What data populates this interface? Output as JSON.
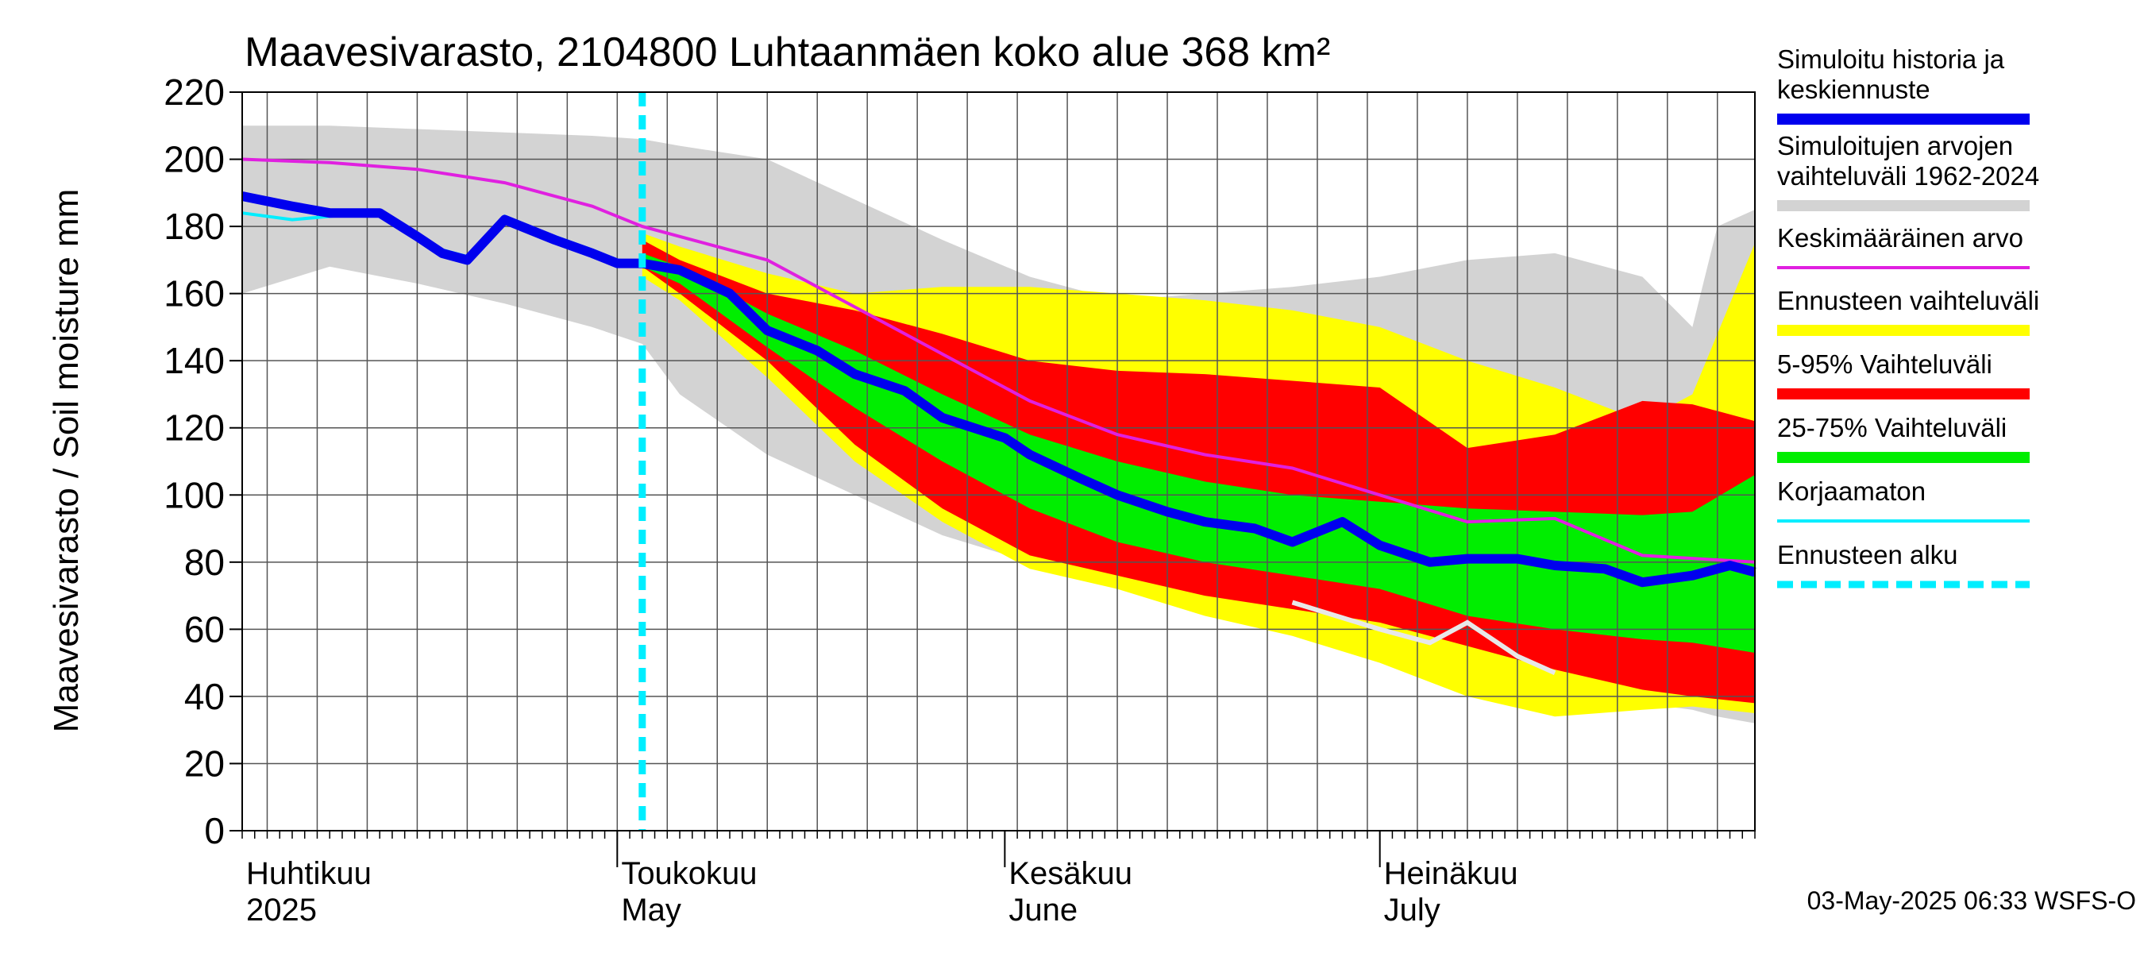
{
  "chart_data": {
    "type": "area",
    "title": "Maavesivarasto, 2104800 Luhtaanmäen koko alue 368 km²",
    "ylabel": "Maavesivarasto / Soil moisture   mm",
    "ylim": [
      0,
      220
    ],
    "yticks": [
      0,
      20,
      40,
      60,
      80,
      100,
      120,
      140,
      160,
      180,
      200,
      220
    ],
    "xlim": [
      "2025-04-01",
      "2025-07-31"
    ],
    "month_labels": [
      {
        "date": "2025-04-01",
        "fi": "Huhtikuu",
        "en": "2025"
      },
      {
        "date": "2025-05-01",
        "fi": "Toukokuu",
        "en": "May"
      },
      {
        "date": "2025-06-01",
        "fi": "Kesäkuu",
        "en": "June"
      },
      {
        "date": "2025-07-01",
        "fi": "Heinäkuu",
        "en": "July"
      }
    ],
    "grid": true,
    "forecast_start": "2025-05-03",
    "footer": "03-May-2025 06:33 WSFS-O",
    "legend": [
      {
        "label": "Simuloitu historia ja keskiennuste",
        "color": "#0000ee",
        "style": "thick"
      },
      {
        "label": "Simuloitujen arvojen vaihteluväli 1962-2024",
        "color": "#d3d3d3",
        "style": "thick"
      },
      {
        "label": "Keskimääräinen arvo",
        "color": "#e020e0",
        "style": "thin"
      },
      {
        "label": "Ennusteen vaihteluväli",
        "color": "#ffff00",
        "style": "thick"
      },
      {
        "label": "5-95% Vaihteluväli",
        "color": "#ff0000",
        "style": "thick"
      },
      {
        "label": "25-75% Vaihteluväli",
        "color": "#00ee00",
        "style": "thick"
      },
      {
        "label": "Korjaamaton",
        "color": "#00eeff",
        "style": "thin"
      },
      {
        "label": "Ennusteen alku",
        "color": "#00eeff",
        "style": "dashed"
      }
    ],
    "series": {
      "hist_range": {
        "x": [
          "2025-04-01",
          "2025-04-08",
          "2025-04-15",
          "2025-04-22",
          "2025-04-29",
          "2025-05-03",
          "2025-05-06",
          "2025-05-13",
          "2025-05-20",
          "2025-05-27",
          "2025-06-03",
          "2025-06-10",
          "2025-06-17",
          "2025-06-24",
          "2025-07-01",
          "2025-07-08",
          "2025-07-15",
          "2025-07-22",
          "2025-07-26",
          "2025-07-28",
          "2025-07-31"
        ],
        "upper": [
          210,
          210,
          209,
          208,
          207,
          206,
          204,
          200,
          188,
          176,
          165,
          158,
          160,
          162,
          165,
          170,
          172,
          165,
          150,
          180,
          185
        ],
        "lower": [
          160,
          168,
          163,
          157,
          150,
          145,
          130,
          112,
          100,
          88,
          80,
          72,
          66,
          60,
          54,
          48,
          42,
          38,
          36,
          34,
          32
        ]
      },
      "forecast_range": {
        "x": [
          "2025-05-03",
          "2025-05-06",
          "2025-05-13",
          "2025-05-20",
          "2025-05-27",
          "2025-06-03",
          "2025-06-10",
          "2025-06-17",
          "2025-06-24",
          "2025-07-01",
          "2025-07-08",
          "2025-07-15",
          "2025-07-22",
          "2025-07-26",
          "2025-07-31"
        ],
        "upper": [
          178,
          174,
          166,
          160,
          162,
          162,
          160,
          158,
          155,
          150,
          140,
          132,
          122,
          130,
          175
        ],
        "lower": [
          165,
          158,
          135,
          110,
          92,
          78,
          72,
          64,
          58,
          50,
          40,
          34,
          36,
          37,
          35
        ]
      },
      "p5_95": {
        "x": [
          "2025-05-03",
          "2025-05-06",
          "2025-05-13",
          "2025-05-20",
          "2025-05-27",
          "2025-06-03",
          "2025-06-10",
          "2025-06-17",
          "2025-06-24",
          "2025-07-01",
          "2025-07-08",
          "2025-07-15",
          "2025-07-22",
          "2025-07-26",
          "2025-07-31"
        ],
        "upper": [
          176,
          170,
          160,
          155,
          148,
          140,
          137,
          136,
          134,
          132,
          114,
          118,
          128,
          127,
          122
        ],
        "lower": [
          168,
          160,
          140,
          115,
          96,
          82,
          76,
          70,
          66,
          62,
          55,
          48,
          42,
          40,
          38
        ]
      },
      "p25_75": {
        "x": [
          "2025-05-03",
          "2025-05-06",
          "2025-05-13",
          "2025-05-20",
          "2025-05-27",
          "2025-06-03",
          "2025-06-10",
          "2025-06-17",
          "2025-06-24",
          "2025-07-01",
          "2025-07-08",
          "2025-07-15",
          "2025-07-22",
          "2025-07-26",
          "2025-07-31"
        ],
        "upper": [
          172,
          168,
          154,
          143,
          130,
          118,
          110,
          104,
          100,
          98,
          96,
          95,
          94,
          95,
          106
        ],
        "lower": [
          168,
          163,
          144,
          126,
          110,
          96,
          86,
          80,
          76,
          72,
          64,
          60,
          57,
          56,
          53
        ]
      },
      "mean": {
        "x": [
          "2025-04-01",
          "2025-04-08",
          "2025-04-15",
          "2025-04-22",
          "2025-04-29",
          "2025-05-03",
          "2025-05-06",
          "2025-05-13",
          "2025-05-20",
          "2025-05-27",
          "2025-06-03",
          "2025-06-10",
          "2025-06-17",
          "2025-06-24",
          "2025-07-01",
          "2025-07-08",
          "2025-07-15",
          "2025-07-22",
          "2025-07-31"
        ],
        "y": [
          200,
          199,
          197,
          193,
          186,
          180,
          177,
          170,
          156,
          142,
          128,
          118,
          112,
          108,
          100,
          92,
          93,
          82,
          80
        ]
      },
      "median": {
        "x": [
          "2025-04-01",
          "2025-04-05",
          "2025-04-08",
          "2025-04-12",
          "2025-04-15",
          "2025-04-17",
          "2025-04-19",
          "2025-04-22",
          "2025-04-26",
          "2025-04-29",
          "2025-05-01",
          "2025-05-03",
          "2025-05-06",
          "2025-05-10",
          "2025-05-13",
          "2025-05-17",
          "2025-05-20",
          "2025-05-24",
          "2025-05-27",
          "2025-06-01",
          "2025-06-03",
          "2025-06-07",
          "2025-06-10",
          "2025-06-14",
          "2025-06-17",
          "2025-06-21",
          "2025-06-24",
          "2025-06-28",
          "2025-07-01",
          "2025-07-05",
          "2025-07-08",
          "2025-07-12",
          "2025-07-15",
          "2025-07-19",
          "2025-07-22",
          "2025-07-26",
          "2025-07-29",
          "2025-07-31"
        ],
        "y": [
          189,
          186,
          184,
          184,
          177,
          172,
          170,
          182,
          176,
          172,
          169,
          169,
          167,
          160,
          149,
          143,
          136,
          131,
          123,
          117,
          112,
          105,
          100,
          95,
          92,
          90,
          86,
          92,
          85,
          80,
          81,
          81,
          79,
          78,
          74,
          76,
          79,
          77
        ]
      },
      "uncorrected": {
        "x": [
          "2025-04-01",
          "2025-04-05",
          "2025-04-08",
          "2025-04-12",
          "2025-04-15",
          "2025-04-17",
          "2025-04-19",
          "2025-04-22",
          "2025-04-26",
          "2025-04-29",
          "2025-05-01",
          "2025-05-03"
        ],
        "y": [
          184,
          182,
          183,
          184,
          178,
          173,
          171,
          183,
          177,
          173,
          170,
          169
        ]
      },
      "history_tail": {
        "x": [
          "2025-06-24",
          "2025-07-01",
          "2025-07-05",
          "2025-07-08",
          "2025-07-12",
          "2025-07-15"
        ],
        "y": [
          68,
          60,
          56,
          62,
          52,
          47
        ]
      }
    }
  }
}
